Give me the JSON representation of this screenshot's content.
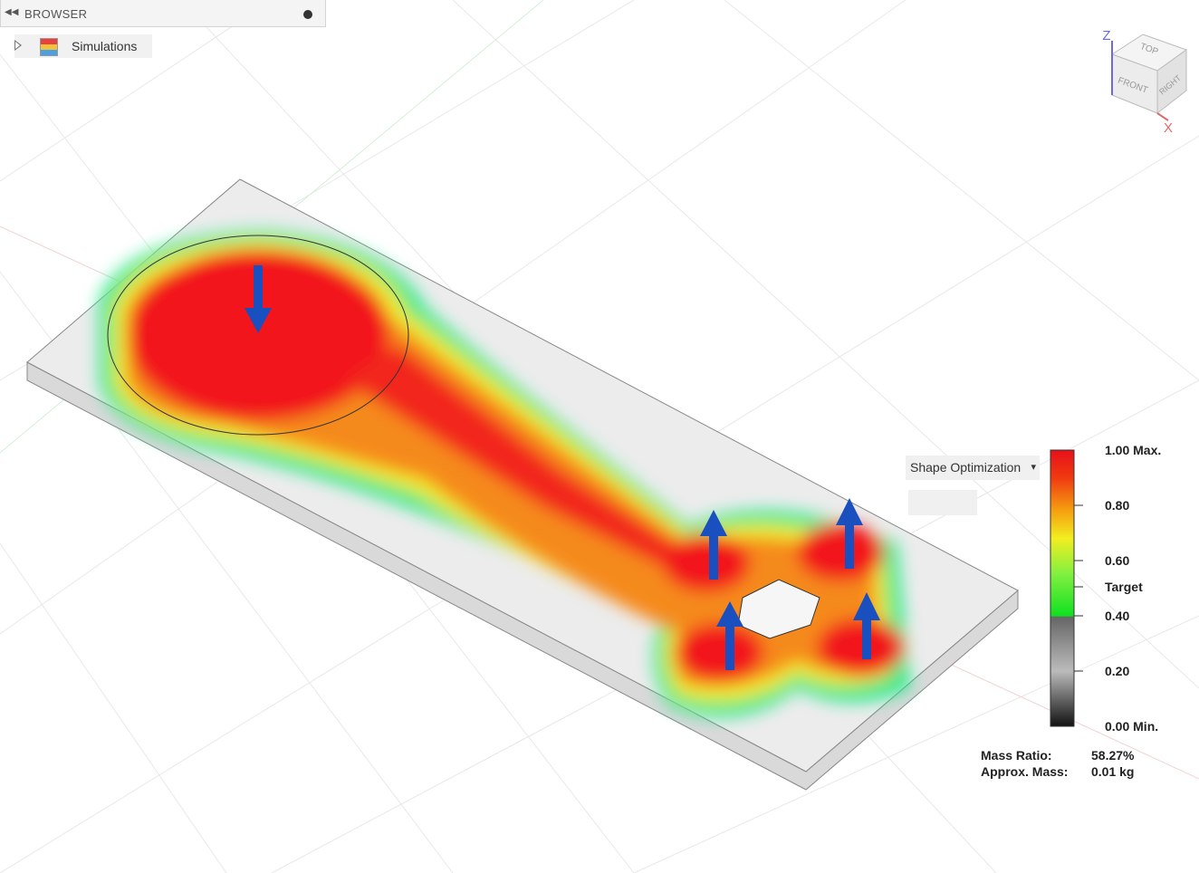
{
  "browser": {
    "title": "BROWSER",
    "items": [
      "Simulations"
    ]
  },
  "view_cube": {
    "faces": [
      "TOP",
      "FRONT",
      "RIGHT"
    ],
    "axes": [
      "Z",
      "X"
    ]
  },
  "results": {
    "dropdown": "Shape Optimization",
    "legend": [
      "1.00 Max.",
      "0.80",
      "0.60",
      "Target",
      "0.40",
      "0.20",
      "0.00 Min."
    ],
    "stats": [
      [
        "Mass Ratio:",
        "58.27%"
      ],
      [
        "Approx. Mass:",
        "0.01 kg"
      ]
    ]
  }
}
